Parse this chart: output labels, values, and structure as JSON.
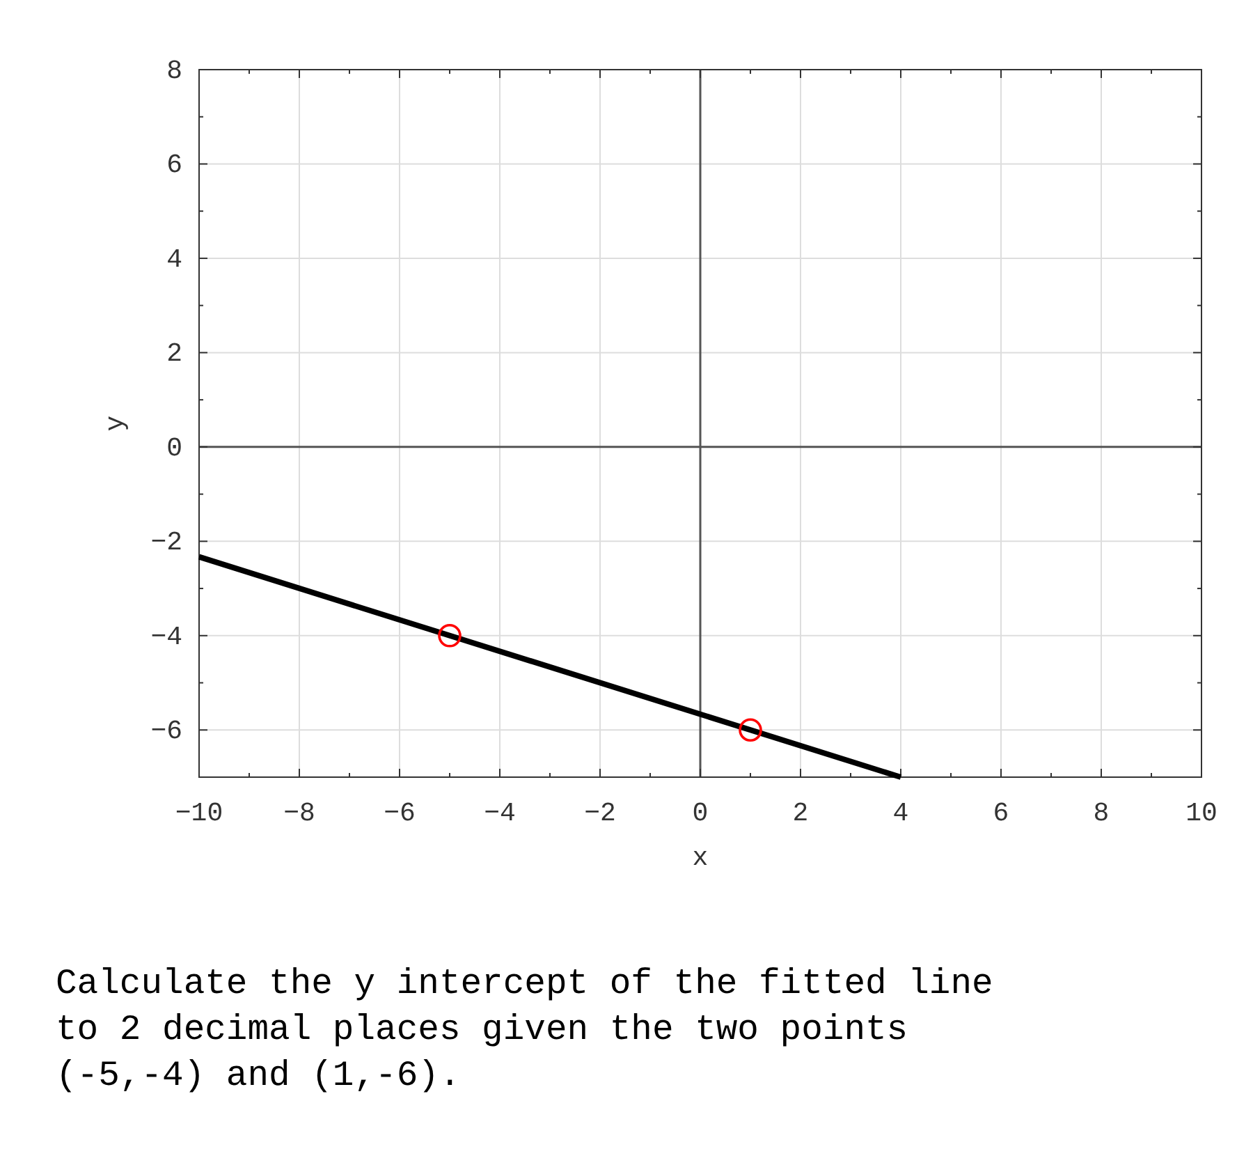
{
  "chart_data": {
    "type": "line",
    "xlabel": "x",
    "ylabel": "y",
    "xlim": [
      -10,
      10
    ],
    "ylim": [
      -7,
      8
    ],
    "xticks": [
      -10,
      {
        "value": -9,
        "label": null
      },
      -8,
      {
        "value": -7,
        "label": null
      },
      -6,
      {
        "value": -5,
        "label": null
      },
      -4,
      {
        "value": -3,
        "label": null
      },
      -2,
      {
        "value": -1,
        "label": null
      },
      0,
      {
        "value": 1,
        "label": null
      },
      2,
      {
        "value": 3,
        "label": null
      },
      4,
      {
        "value": 5,
        "label": null
      },
      6,
      {
        "value": 7,
        "label": null
      },
      8,
      {
        "value": 9,
        "label": null
      },
      10
    ],
    "yticks": [
      {
        "value": -7,
        "label": null
      },
      -6,
      {
        "value": -5,
        "label": null
      },
      -4,
      {
        "value": -3,
        "label": null
      },
      -2,
      {
        "value": -1,
        "label": null
      },
      0,
      {
        "value": 1,
        "label": null
      },
      2,
      {
        "value": 3,
        "label": null
      },
      4,
      {
        "value": 5,
        "label": null
      },
      6,
      {
        "value": 7,
        "label": null
      },
      8
    ],
    "grid": true,
    "series": [
      {
        "type": "line",
        "x": [
          -10,
          4
        ],
        "values": [
          -2.33,
          -7
        ],
        "color": "#000000",
        "line_style": "solid",
        "marker": "none"
      },
      {
        "type": "scatter",
        "x": [
          -5,
          1
        ],
        "values": [
          -4,
          -6
        ],
        "color": "#ff0000",
        "marker": "circle"
      }
    ],
    "annotations": [
      "Calculate the y intercept of the fitted line\nto 2 decimal places given the two points\n(-5,-4) and (1,-6)."
    ]
  }
}
